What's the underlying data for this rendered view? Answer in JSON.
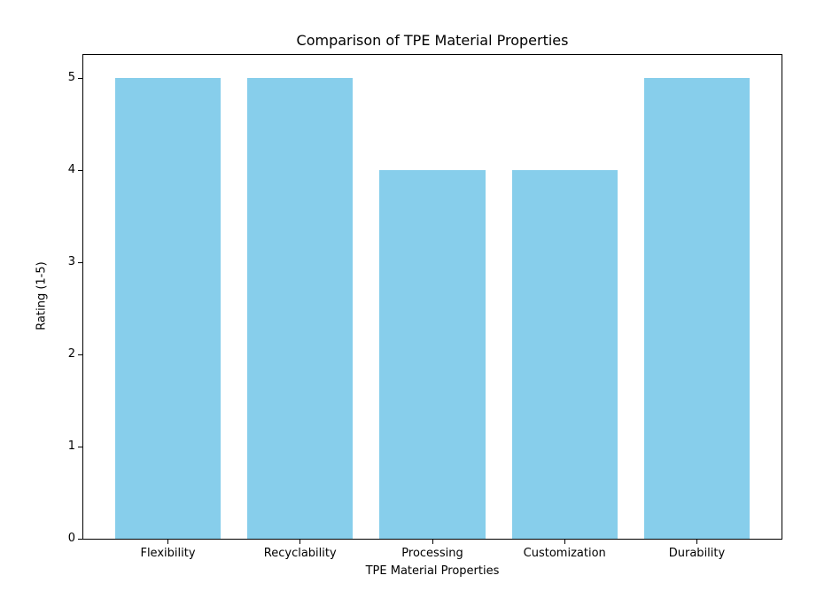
{
  "chart_data": {
    "type": "bar",
    "title": "Comparison of TPE Material Properties",
    "xlabel": "TPE Material Properties",
    "ylabel": "Rating (1-5)",
    "categories": [
      "Flexibility",
      "Recyclability",
      "Processing",
      "Customization",
      "Durability"
    ],
    "values": [
      5,
      5,
      4,
      4,
      5
    ],
    "yticks": [
      0,
      1,
      2,
      3,
      4,
      5
    ],
    "ylim": [
      0,
      5.25
    ],
    "bar_color": "#87CEEB",
    "background_color": "#ffffff",
    "spine_color": "#000000",
    "grid": false,
    "legend": null
  }
}
